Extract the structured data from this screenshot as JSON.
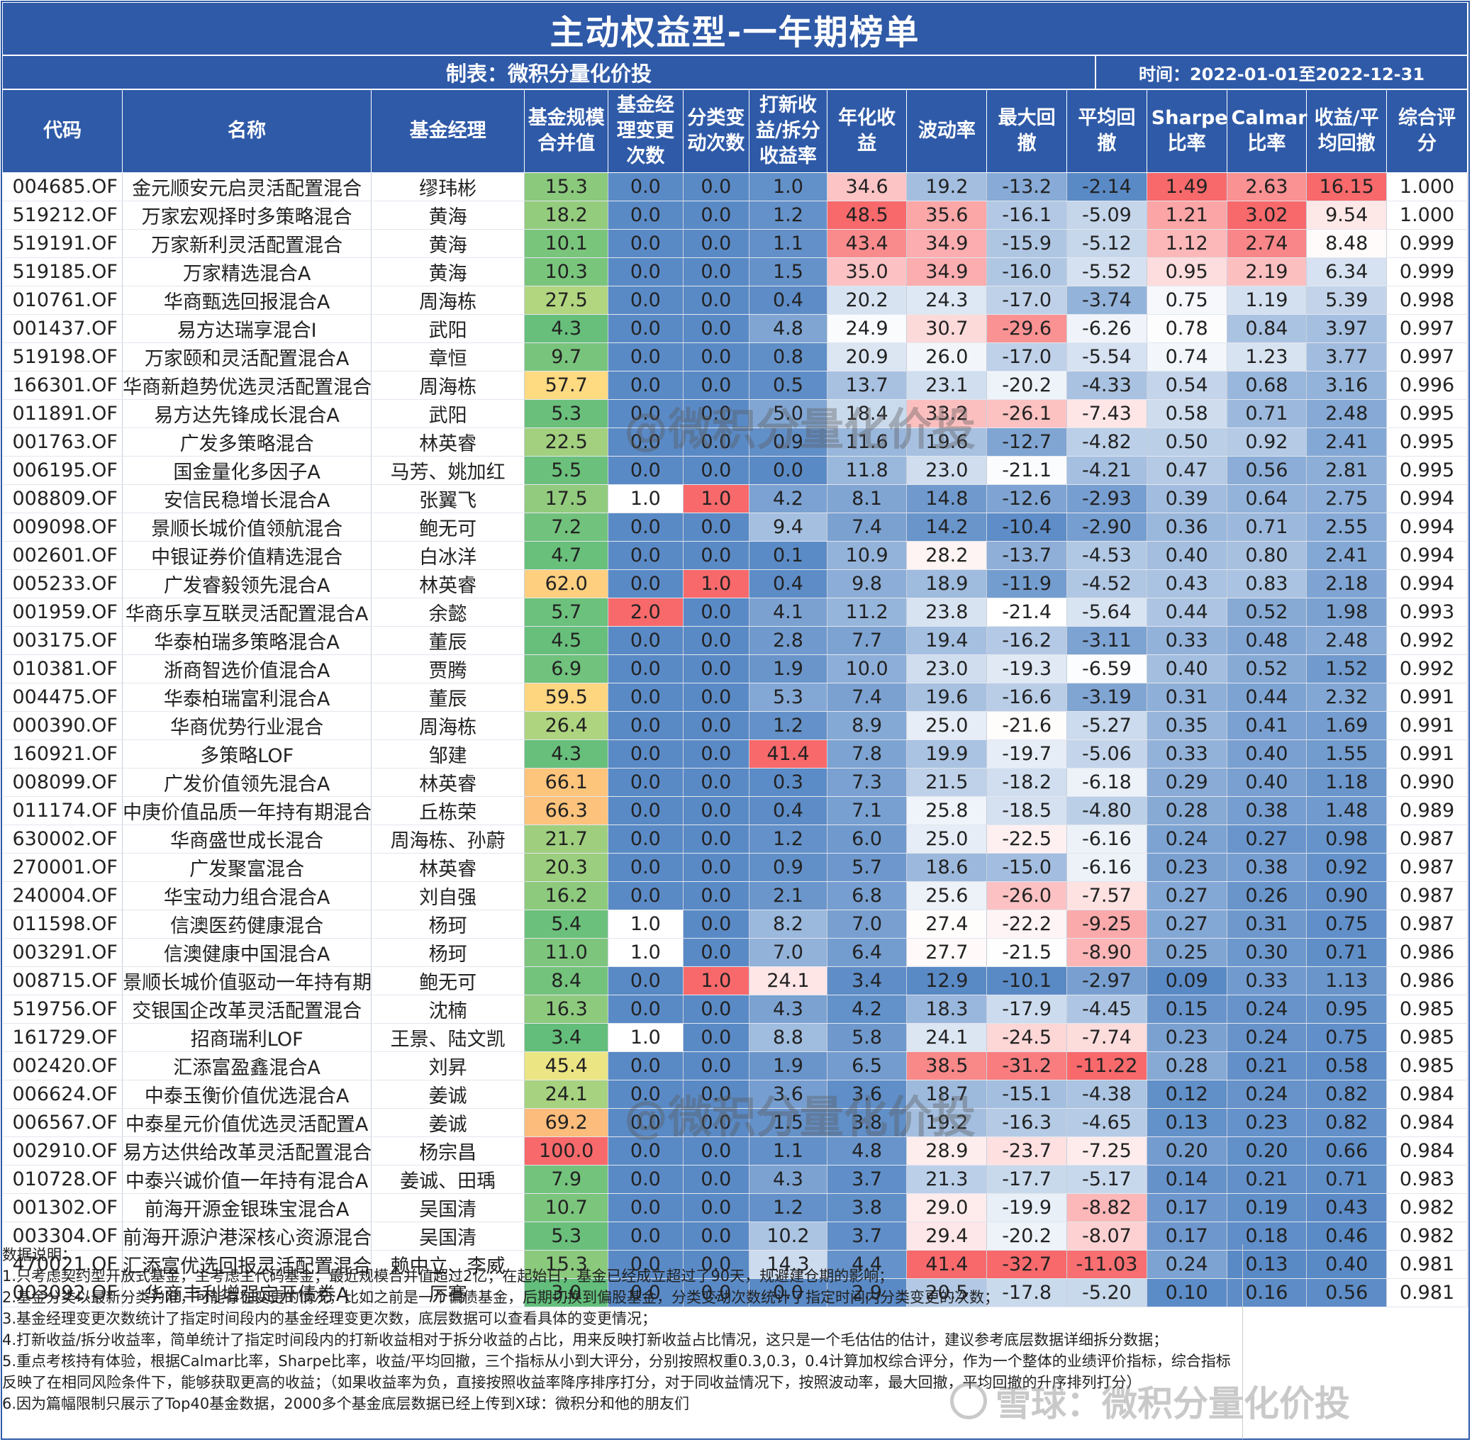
{
  "title": "主动权益型-一年期榜单",
  "maker": "制表：微积分量化价投",
  "period": "时间：2022-01-01至2022-12-31",
  "columns": [
    "代码",
    "名称",
    "基金经理",
    "基金规模合并值",
    "基金经理变更次数",
    "分类变动次数",
    "打新收益/拆分收益率",
    "年化收益",
    "波动率",
    "最大回撤",
    "平均回撤",
    "Sharpe比率",
    "Calmar比率",
    "收益/平均回撤",
    "综合评分"
  ],
  "rows": [
    [
      "004685.OF",
      "金元顺安元启灵活配置混合",
      "缪玮彬",
      "15.3",
      "0.0",
      "0.0",
      "1.0",
      "34.6",
      "19.2",
      "-13.2",
      "-2.14",
      "1.49",
      "2.63",
      "16.15",
      "1.000"
    ],
    [
      "519212.OF",
      "万家宏观择时多策略混合",
      "黄海",
      "18.2",
      "0.0",
      "0.0",
      "1.2",
      "48.5",
      "35.6",
      "-16.1",
      "-5.09",
      "1.21",
      "3.02",
      "9.54",
      "1.000"
    ],
    [
      "519191.OF",
      "万家新利灵活配置混合",
      "黄海",
      "10.1",
      "0.0",
      "0.0",
      "1.1",
      "43.4",
      "34.9",
      "-15.9",
      "-5.12",
      "1.12",
      "2.74",
      "8.48",
      "0.999"
    ],
    [
      "519185.OF",
      "万家精选混合A",
      "黄海",
      "10.3",
      "0.0",
      "0.0",
      "1.5",
      "35.0",
      "34.9",
      "-16.0",
      "-5.52",
      "0.95",
      "2.19",
      "6.34",
      "0.999"
    ],
    [
      "010761.OF",
      "华商甄选回报混合A",
      "周海栋",
      "27.5",
      "0.0",
      "0.0",
      "0.4",
      "20.2",
      "24.3",
      "-17.0",
      "-3.74",
      "0.75",
      "1.19",
      "5.39",
      "0.998"
    ],
    [
      "001437.OF",
      "易方达瑞享混合I",
      "武阳",
      "4.3",
      "0.0",
      "0.0",
      "4.8",
      "24.9",
      "30.7",
      "-29.6",
      "-6.26",
      "0.78",
      "0.84",
      "3.97",
      "0.997"
    ],
    [
      "519198.OF",
      "万家颐和灵活配置混合A",
      "章恒",
      "9.7",
      "0.0",
      "0.0",
      "0.8",
      "20.9",
      "26.0",
      "-17.0",
      "-5.54",
      "0.74",
      "1.23",
      "3.77",
      "0.997"
    ],
    [
      "166301.OF",
      "华商新趋势优选灵活配置混合",
      "周海栋",
      "57.7",
      "0.0",
      "0.0",
      "0.5",
      "13.7",
      "23.1",
      "-20.2",
      "-4.33",
      "0.54",
      "0.68",
      "3.16",
      "0.996"
    ],
    [
      "011891.OF",
      "易方达先锋成长混合A",
      "武阳",
      "5.3",
      "0.0",
      "0.0",
      "5.0",
      "18.4",
      "33.2",
      "-26.1",
      "-7.43",
      "0.58",
      "0.71",
      "2.48",
      "0.995"
    ],
    [
      "001763.OF",
      "广发多策略混合",
      "林英睿",
      "22.5",
      "0.0",
      "0.0",
      "0.9",
      "11.6",
      "19.6",
      "-12.7",
      "-4.82",
      "0.50",
      "0.92",
      "2.41",
      "0.995"
    ],
    [
      "006195.OF",
      "国金量化多因子A",
      "马芳、姚加红",
      "5.5",
      "0.0",
      "0.0",
      "0.0",
      "11.8",
      "23.0",
      "-21.1",
      "-4.21",
      "0.47",
      "0.56",
      "2.81",
      "0.995"
    ],
    [
      "008809.OF",
      "安信民稳增长混合A",
      "张翼飞",
      "17.5",
      "1.0",
      "1.0",
      "4.2",
      "8.1",
      "14.8",
      "-12.6",
      "-2.93",
      "0.39",
      "0.64",
      "2.75",
      "0.994"
    ],
    [
      "009098.OF",
      "景顺长城价值领航混合",
      "鲍无可",
      "7.2",
      "0.0",
      "0.0",
      "9.4",
      "7.4",
      "14.2",
      "-10.4",
      "-2.90",
      "0.36",
      "0.71",
      "2.55",
      "0.994"
    ],
    [
      "002601.OF",
      "中银证券价值精选混合",
      "白冰洋",
      "4.7",
      "0.0",
      "0.0",
      "0.1",
      "10.9",
      "28.2",
      "-13.7",
      "-4.53",
      "0.40",
      "0.80",
      "2.41",
      "0.994"
    ],
    [
      "005233.OF",
      "广发睿毅领先混合A",
      "林英睿",
      "62.0",
      "0.0",
      "1.0",
      "0.4",
      "9.8",
      "18.9",
      "-11.9",
      "-4.52",
      "0.43",
      "0.83",
      "2.18",
      "0.994"
    ],
    [
      "001959.OF",
      "华商乐享互联灵活配置混合A",
      "余懿",
      "5.7",
      "2.0",
      "0.0",
      "4.1",
      "11.2",
      "23.8",
      "-21.4",
      "-5.64",
      "0.44",
      "0.52",
      "1.98",
      "0.993"
    ],
    [
      "003175.OF",
      "华泰柏瑞多策略混合A",
      "董辰",
      "4.5",
      "0.0",
      "0.0",
      "2.8",
      "7.7",
      "19.4",
      "-16.2",
      "-3.11",
      "0.33",
      "0.48",
      "2.48",
      "0.992"
    ],
    [
      "010381.OF",
      "浙商智选价值混合A",
      "贾腾",
      "6.9",
      "0.0",
      "0.0",
      "1.9",
      "10.0",
      "23.0",
      "-19.3",
      "-6.59",
      "0.40",
      "0.52",
      "1.52",
      "0.992"
    ],
    [
      "004475.OF",
      "华泰柏瑞富利混合A",
      "董辰",
      "59.5",
      "0.0",
      "0.0",
      "5.3",
      "7.4",
      "19.6",
      "-16.6",
      "-3.19",
      "0.31",
      "0.44",
      "2.32",
      "0.991"
    ],
    [
      "000390.OF",
      "华商优势行业混合",
      "周海栋",
      "26.4",
      "0.0",
      "0.0",
      "1.2",
      "8.9",
      "25.0",
      "-21.6",
      "-5.27",
      "0.35",
      "0.41",
      "1.69",
      "0.991"
    ],
    [
      "160921.OF",
      "多策略LOF",
      "邹建",
      "4.3",
      "0.0",
      "0.0",
      "41.4",
      "7.8",
      "19.9",
      "-19.7",
      "-5.06",
      "0.33",
      "0.40",
      "1.55",
      "0.991"
    ],
    [
      "008099.OF",
      "广发价值领先混合A",
      "林英睿",
      "66.1",
      "0.0",
      "0.0",
      "0.3",
      "7.3",
      "21.5",
      "-18.2",
      "-6.18",
      "0.29",
      "0.40",
      "1.18",
      "0.990"
    ],
    [
      "011174.OF",
      "中庚价值品质一年持有期混合",
      "丘栋荣",
      "66.3",
      "0.0",
      "0.0",
      "0.4",
      "7.1",
      "25.8",
      "-18.5",
      "-4.80",
      "0.28",
      "0.38",
      "1.48",
      "0.989"
    ],
    [
      "630002.OF",
      "华商盛世成长混合",
      "周海栋、孙蔚",
      "21.7",
      "0.0",
      "0.0",
      "1.2",
      "6.0",
      "25.0",
      "-22.5",
      "-6.16",
      "0.24",
      "0.27",
      "0.98",
      "0.987"
    ],
    [
      "270001.OF",
      "广发聚富混合",
      "林英睿",
      "20.3",
      "0.0",
      "0.0",
      "0.9",
      "5.7",
      "18.6",
      "-15.0",
      "-6.16",
      "0.23",
      "0.38",
      "0.92",
      "0.987"
    ],
    [
      "240004.OF",
      "华宝动力组合混合A",
      "刘自强",
      "16.2",
      "0.0",
      "0.0",
      "2.1",
      "6.8",
      "25.6",
      "-26.0",
      "-7.57",
      "0.27",
      "0.26",
      "0.90",
      "0.987"
    ],
    [
      "011598.OF",
      "信澳医药健康混合",
      "杨珂",
      "5.4",
      "1.0",
      "0.0",
      "8.2",
      "7.0",
      "27.4",
      "-22.2",
      "-9.25",
      "0.27",
      "0.31",
      "0.75",
      "0.987"
    ],
    [
      "003291.OF",
      "信澳健康中国混合A",
      "杨珂",
      "11.0",
      "1.0",
      "0.0",
      "7.0",
      "6.4",
      "27.7",
      "-21.5",
      "-8.90",
      "0.25",
      "0.30",
      "0.71",
      "0.986"
    ],
    [
      "008715.OF",
      "景顺长城价值驱动一年持有期混合",
      "鲍无可",
      "8.4",
      "0.0",
      "1.0",
      "24.1",
      "3.4",
      "12.9",
      "-10.1",
      "-2.97",
      "0.09",
      "0.33",
      "1.13",
      "0.986"
    ],
    [
      "519756.OF",
      "交银国企改革灵活配置混合",
      "沈楠",
      "16.3",
      "0.0",
      "0.0",
      "4.3",
      "4.2",
      "18.3",
      "-17.9",
      "-4.45",
      "0.15",
      "0.24",
      "0.95",
      "0.985"
    ],
    [
      "161729.OF",
      "招商瑞利LOF",
      "王景、陆文凯",
      "3.4",
      "1.0",
      "0.0",
      "8.8",
      "5.8",
      "24.1",
      "-24.5",
      "-7.74",
      "0.23",
      "0.24",
      "0.75",
      "0.985"
    ],
    [
      "002420.OF",
      "汇添富盈鑫混合A",
      "刘昇",
      "45.4",
      "0.0",
      "0.0",
      "1.9",
      "6.5",
      "38.5",
      "-31.2",
      "-11.22",
      "0.28",
      "0.21",
      "0.58",
      "0.985"
    ],
    [
      "006624.OF",
      "中泰玉衡价值优选混合A",
      "姜诚",
      "24.1",
      "0.0",
      "0.0",
      "3.6",
      "3.6",
      "18.7",
      "-15.1",
      "-4.38",
      "0.12",
      "0.24",
      "0.82",
      "0.984"
    ],
    [
      "006567.OF",
      "中泰星元价值优选灵活配置A",
      "姜诚",
      "69.2",
      "0.0",
      "0.0",
      "1.5",
      "3.8",
      "19.2",
      "-16.3",
      "-4.65",
      "0.13",
      "0.23",
      "0.82",
      "0.984"
    ],
    [
      "002910.OF",
      "易方达供给改革灵活配置混合",
      "杨宗昌",
      "100.0",
      "0.0",
      "0.0",
      "1.1",
      "4.8",
      "28.9",
      "-23.7",
      "-7.25",
      "0.20",
      "0.20",
      "0.66",
      "0.984"
    ],
    [
      "010728.OF",
      "中泰兴诚价值一年持有混合A",
      "姜诚、田瑀",
      "7.9",
      "0.0",
      "0.0",
      "4.3",
      "3.7",
      "21.3",
      "-17.7",
      "-5.17",
      "0.14",
      "0.21",
      "0.71",
      "0.983"
    ],
    [
      "001302.OF",
      "前海开源金银珠宝混合A",
      "吴国清",
      "10.7",
      "0.0",
      "0.0",
      "1.2",
      "3.8",
      "29.0",
      "-19.9",
      "-8.82",
      "0.17",
      "0.19",
      "0.43",
      "0.982"
    ],
    [
      "003304.OF",
      "前海开源沪港深核心资源混合A",
      "吴国清",
      "5.3",
      "0.0",
      "0.0",
      "10.2",
      "3.7",
      "29.4",
      "-20.2",
      "-8.07",
      "0.17",
      "0.18",
      "0.46",
      "0.982"
    ],
    [
      "470021.OF",
      "汇添富优选回报灵活配置混合A",
      "赖中立、李威",
      "15.3",
      "0.0",
      "0.0",
      "14.3",
      "4.4",
      "41.4",
      "-32.7",
      "-11.03",
      "0.24",
      "0.13",
      "0.40",
      "0.981"
    ],
    [
      "003092.OF",
      "华商丰利增强定开债券A",
      "厉骞",
      "3.0",
      "0.0",
      "0.0",
      "0.0",
      "2.9",
      "20.5",
      "-17.8",
      "-5.20",
      "0.10",
      "0.16",
      "0.56",
      "0.981"
    ]
  ],
  "notes": {
    "heading": "数据说明：",
    "items": [
      "1.只考虑契约型开放式基金，主考虑主代码基金；最近规模合并值超过2亿；在起始日，基金已经成立超过了90天，规避建仓期的影响；",
      "2.基金分类以最新分类为准，可能存在变更的情况，比如之前是一个偏债基金，后期切换到偏股基金，分类变动次数统计了指定时间内分类变更的次数；",
      "3.基金经理变更次数统计了指定时间段内的基金经理变更次数，底层数据可以查看具体的变更情况；",
      "4.打新收益/拆分收益率，简单统计了指定时间段内的打新收益相对于拆分收益的占比，用来反映打新收益占比情况，这只是一个毛估估的估计，建议参考底层数据详细拆分数据；",
      "5.重点考核持有体验，根据Calmar比率，Sharpe比率，收益/平均回撤，三个指标从小到大评分，分别按照权重0.3,0.3，0.4计算加权综合评分，作为一个整体的业绩评价指标，综合指标反映了在相同风险条件下，能够获取更高的收益；（如果收益率为负，直接按照收益率降序排序打分，对于同收益情况下，按照波动率，最大回撤，平均回撤的升序排列打分）",
      "6.因为篇幅限制只展示了Top40基金数据，2000多个基金底层数据已经上传到X球：微积分和他的朋友们"
    ]
  },
  "watermarks": [
    "@微积分量化价投",
    "@微积分量化价投",
    "雪球：微积分量化价投"
  ],
  "colors": {
    "header_blue": "#2f5aa8",
    "heat_red": "#f8696b",
    "heat_blue": "#5a8ac6",
    "heat_white": "#ffffff",
    "scale_green": "#63be7b",
    "scale_yellow": "#ffeb84",
    "scale_red": "#f8696b"
  }
}
